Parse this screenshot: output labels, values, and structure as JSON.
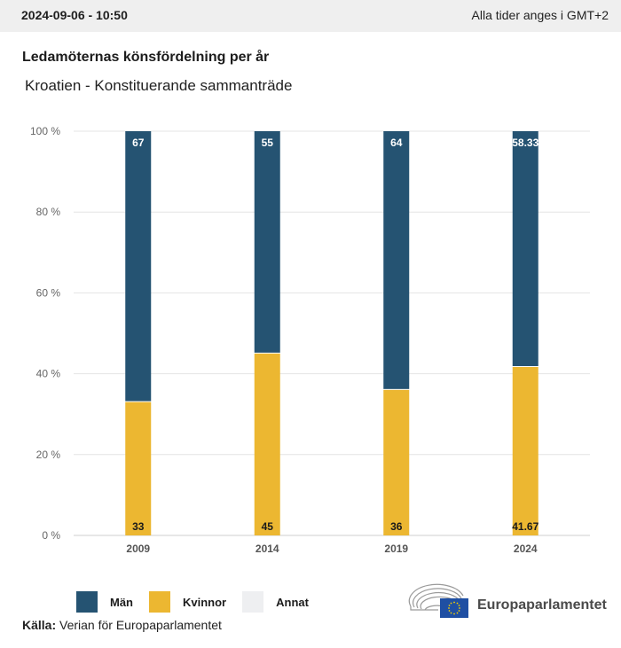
{
  "header": {
    "timestamp": "2024-09-06 - 10:50",
    "timezone_note": "Alla tider anges i GMT+2"
  },
  "title": "Ledamöternas könsfördelning per år",
  "subtitle": "Kroatien - Konstituerande sammanträde",
  "chart_data": {
    "type": "bar",
    "stacked": true,
    "normalized_percent": true,
    "title": "Ledamöternas könsfördelning per år",
    "subtitle": "Kroatien - Konstituerande sammanträde",
    "xlabel": "",
    "ylabel": "",
    "categories": [
      "2009",
      "2014",
      "2019",
      "2024"
    ],
    "series": [
      {
        "name": "Kvinnor",
        "color": "#ecb731",
        "values": [
          33,
          45,
          36,
          41.67
        ],
        "labels": [
          "33",
          "45",
          "36",
          "41.67"
        ]
      },
      {
        "name": "Män",
        "color": "#255372",
        "values": [
          67,
          55,
          64,
          58.33
        ],
        "labels": [
          "67",
          "55",
          "64",
          "58.33"
        ]
      },
      {
        "name": "Annat",
        "color": "#eeeff1",
        "values": [
          0,
          0,
          0,
          0
        ],
        "labels": []
      }
    ],
    "yticks": [
      0,
      20,
      40,
      60,
      80,
      100
    ],
    "ytick_labels": [
      "0 %",
      "20 %",
      "40 %",
      "60 %",
      "80 %",
      "100 %"
    ],
    "ylim": [
      0,
      100
    ],
    "grid": true,
    "legend_position": "bottom-left"
  },
  "legend": [
    {
      "name": "Män",
      "color": "#255372"
    },
    {
      "name": "Kvinnor",
      "color": "#ecb731"
    },
    {
      "name": "Annat",
      "color": "#eeeff1"
    }
  ],
  "source": {
    "label": "Källa:",
    "text": "Verian för Europaparlamentet"
  },
  "logo": {
    "name": "Europaparlamentet"
  }
}
